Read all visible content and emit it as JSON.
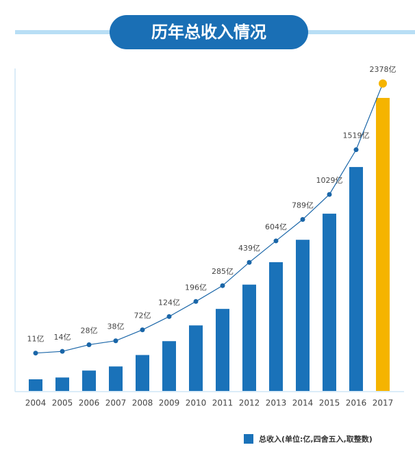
{
  "chart_data": {
    "type": "bar",
    "title": "历年总收入情况",
    "categories": [
      "2004",
      "2005",
      "2006",
      "2007",
      "2008",
      "2009",
      "2010",
      "2011",
      "2012",
      "2013",
      "2014",
      "2015",
      "2016",
      "2017"
    ],
    "series": [
      {
        "name": "总收入(单位:亿,四舍五入,取整数)",
        "color": "#1a72b9",
        "highlight_color": "#f5b400",
        "line_color": "#1a66a8",
        "values": [
          11,
          14,
          28,
          38,
          72,
          124,
          196,
          285,
          439,
          604,
          789,
          1029,
          1519,
          2378
        ],
        "value_labels": [
          "11亿",
          "14亿",
          "28亿",
          "38亿",
          "72亿",
          "124亿",
          "196亿",
          "285亿",
          "439亿",
          "604亿",
          "789亿",
          "1029亿",
          "1519亿",
          "2378亿"
        ]
      }
    ],
    "legend": "bottom-right"
  }
}
